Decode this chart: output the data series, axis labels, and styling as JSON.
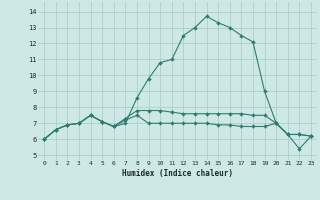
{
  "xlabel": "Humidex (Indice chaleur)",
  "xlim": [
    -0.5,
    23.5
  ],
  "ylim": [
    4.7,
    14.6
  ],
  "yticks": [
    5,
    6,
    7,
    8,
    9,
    10,
    11,
    12,
    13,
    14
  ],
  "xticks": [
    0,
    1,
    2,
    3,
    4,
    5,
    6,
    7,
    8,
    9,
    10,
    11,
    12,
    13,
    14,
    15,
    16,
    17,
    18,
    19,
    20,
    21,
    22,
    23
  ],
  "bg_color": "#cde8e5",
  "grid_color": "#aad0cd",
  "line_color": "#2e7d6e",
  "series1_y": [
    6.0,
    6.6,
    6.9,
    7.0,
    7.5,
    7.1,
    6.8,
    7.0,
    8.6,
    9.8,
    10.8,
    11.0,
    12.5,
    13.0,
    13.7,
    13.3,
    13.0,
    12.5,
    12.1,
    9.0,
    7.0,
    6.3,
    6.3,
    6.2
  ],
  "series2_y": [
    6.0,
    6.6,
    6.9,
    7.0,
    7.5,
    7.1,
    6.8,
    7.3,
    7.8,
    7.8,
    7.8,
    7.7,
    7.6,
    7.6,
    7.6,
    7.6,
    7.6,
    7.6,
    7.5,
    7.5,
    7.0,
    6.3,
    6.3,
    6.2
  ],
  "series3_y": [
    6.0,
    6.6,
    6.9,
    7.0,
    7.5,
    7.1,
    6.8,
    7.2,
    7.5,
    7.0,
    7.0,
    7.0,
    7.0,
    7.0,
    7.0,
    6.9,
    6.9,
    6.8,
    6.8,
    6.8,
    7.0,
    6.3,
    5.4,
    6.2
  ]
}
